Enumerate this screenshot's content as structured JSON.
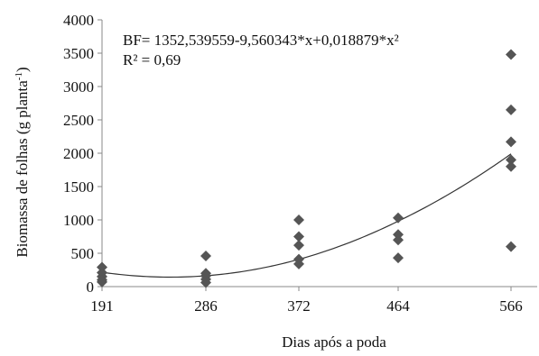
{
  "chart_data": {
    "type": "scatter",
    "xlabel": "Dias após a poda",
    "ylabel_main": "Biomassa de folhas (g planta",
    "ylabel_sup": "-1",
    "ylabel_close": ")",
    "x_ticks": [
      "191",
      "286",
      "372",
      "464",
      "566"
    ],
    "y_ticks": [
      "0",
      "500",
      "1000",
      "1500",
      "2000",
      "2500",
      "3000",
      "3500",
      "4000"
    ],
    "ylim": [
      0,
      4000
    ],
    "grid": false,
    "annotations": {
      "equation": "BF= 1352,539559-9,560343*x+0,018879*x²",
      "r2": "R² = 0,69"
    },
    "series": [
      {
        "marker": "diamond",
        "color": "#555555",
        "points": [
          {
            "x": 191,
            "y": 290
          },
          {
            "x": 191,
            "y": 210
          },
          {
            "x": 191,
            "y": 150
          },
          {
            "x": 191,
            "y": 100
          },
          {
            "x": 191,
            "y": 70
          },
          {
            "x": 286,
            "y": 460
          },
          {
            "x": 286,
            "y": 200
          },
          {
            "x": 286,
            "y": 160
          },
          {
            "x": 286,
            "y": 110
          },
          {
            "x": 286,
            "y": 60
          },
          {
            "x": 372,
            "y": 1000
          },
          {
            "x": 372,
            "y": 750
          },
          {
            "x": 372,
            "y": 620
          },
          {
            "x": 372,
            "y": 410
          },
          {
            "x": 372,
            "y": 340
          },
          {
            "x": 464,
            "y": 1030
          },
          {
            "x": 464,
            "y": 780
          },
          {
            "x": 464,
            "y": 700
          },
          {
            "x": 464,
            "y": 430
          },
          {
            "x": 566,
            "y": 3480
          },
          {
            "x": 566,
            "y": 2650
          },
          {
            "x": 566,
            "y": 2170
          },
          {
            "x": 566,
            "y": 1900
          },
          {
            "x": 566,
            "y": 1800
          },
          {
            "x": 566,
            "y": 600
          }
        ]
      }
    ],
    "trendline": {
      "type": "quadratic",
      "coefficients": [
        1352.539559,
        -9.560343,
        0.018879
      ],
      "x_range": [
        191,
        566
      ],
      "color": "#333333"
    }
  }
}
